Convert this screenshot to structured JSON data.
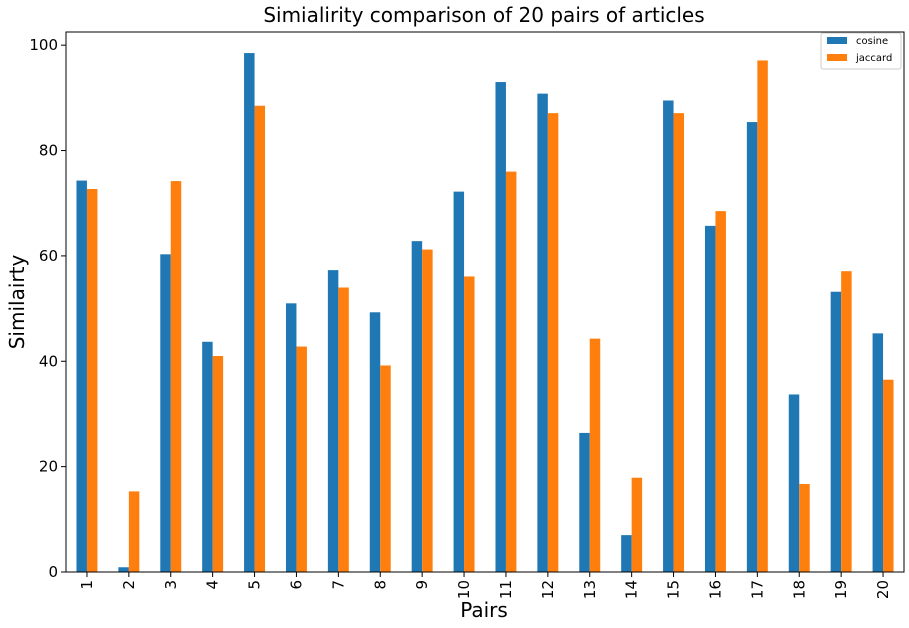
{
  "chart_data": {
    "type": "bar",
    "title": "Simialirity comparison of 20 pairs of articles",
    "xlabel": "Pairs",
    "ylabel": "Similairty",
    "categories": [
      "1",
      "2",
      "3",
      "4",
      "5",
      "6",
      "7",
      "8",
      "9",
      "10",
      "11",
      "12",
      "13",
      "14",
      "15",
      "16",
      "17",
      "18",
      "19",
      "20"
    ],
    "series": [
      {
        "name": "cosine",
        "color": "#1f77b4",
        "values": [
          74.3,
          0.9,
          60.3,
          43.7,
          98.5,
          51.0,
          57.3,
          49.3,
          62.8,
          72.2,
          93.0,
          90.8,
          26.4,
          7.0,
          89.5,
          65.7,
          85.4,
          33.7,
          53.2,
          45.3
        ]
      },
      {
        "name": "jaccard",
        "color": "#ff7f0e",
        "values": [
          72.7,
          15.3,
          74.2,
          41.0,
          88.5,
          42.8,
          54.0,
          39.2,
          61.2,
          56.1,
          76.0,
          87.1,
          44.3,
          17.9,
          87.1,
          68.5,
          97.1,
          16.7,
          57.1,
          36.5
        ]
      }
    ],
    "ylim": [
      0,
      102.5
    ],
    "yticks": [
      0,
      20,
      40,
      60,
      80,
      100
    ],
    "grid": false,
    "legend_position": "top-right"
  }
}
